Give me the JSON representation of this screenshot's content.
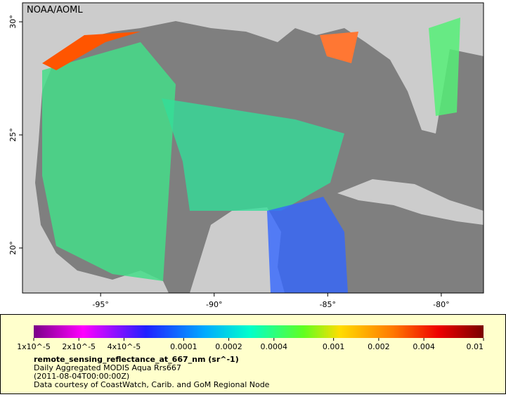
{
  "map": {
    "label": "NOAA/AOML",
    "xlim": [
      -98.44,
      -78.14
    ],
    "ylim": [
      18.01,
      30.84
    ],
    "lon_ticks": [
      {
        "value": -95,
        "label": "-95°"
      },
      {
        "value": -90,
        "label": "-90°"
      },
      {
        "value": -85,
        "label": "-85°"
      },
      {
        "value": -80,
        "label": "-80°"
      }
    ],
    "lat_ticks": [
      {
        "value": 20,
        "label": "20°"
      },
      {
        "value": 25,
        "label": "25°"
      },
      {
        "value": 30,
        "label": "30°"
      }
    ]
  },
  "colorbar": {
    "log_scale": true,
    "lim": [
      1e-05,
      0.01
    ],
    "ticks": [
      {
        "value": 1e-05,
        "label": "1x10^-5"
      },
      {
        "value": 2e-05,
        "label": "2x10^-5"
      },
      {
        "value": 4e-05,
        "label": "4x10^-5"
      },
      0.0001,
      0.0002,
      0.0004,
      0.001,
      0.002,
      0.004,
      0.01
    ]
  },
  "legend": {
    "variable": "remote_sensing_reflectance_at_667_nm (sr^-1)",
    "lines": [
      "Daily Aggregated MODIS Aqua Rrs667",
      "(2011-08-04T00:00:00Z)",
      "Data courtesy of CoastWatch, Carib. and GoM Regional Node"
    ]
  }
}
